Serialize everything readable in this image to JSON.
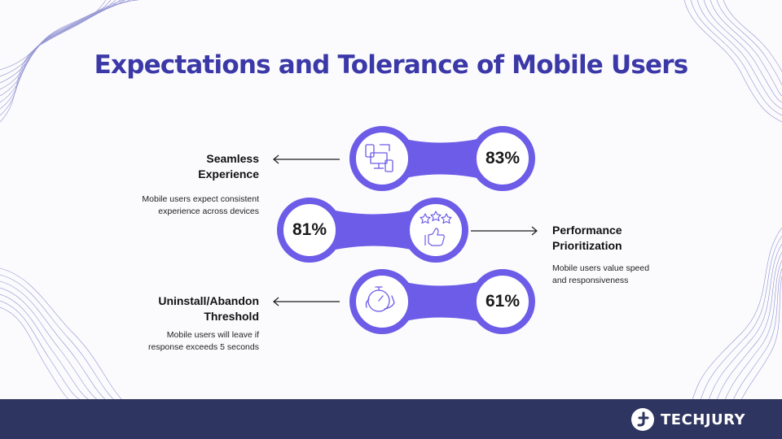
{
  "title": "Expectations and Tolerance of Mobile Users",
  "items": [
    {
      "label_line1": "Seamless",
      "label_line2": "Experience",
      "desc_line1": "Mobile users expect consistent",
      "desc_line2": "experience across devices",
      "value": "83%",
      "icon": "devices-icon"
    },
    {
      "label_line1": "Performance",
      "label_line2": "Prioritization",
      "desc_line1": "Mobile users value speed",
      "desc_line2": "and responsiveness",
      "value": "81%",
      "icon": "stars-thumbs-up-icon"
    },
    {
      "label_line1": "Uninstall/Abandon",
      "label_line2": "Threshold",
      "desc_line1": "Mobile users will leave if",
      "desc_line2": "response exceeds 5 seconds",
      "value": "61%",
      "icon": "stopwatch-hand-icon"
    }
  ],
  "brand": {
    "name": "TECHJURY"
  },
  "colors": {
    "title": "#3b38a8",
    "accent": "#6c5ce7",
    "footer": "#2e3560"
  }
}
